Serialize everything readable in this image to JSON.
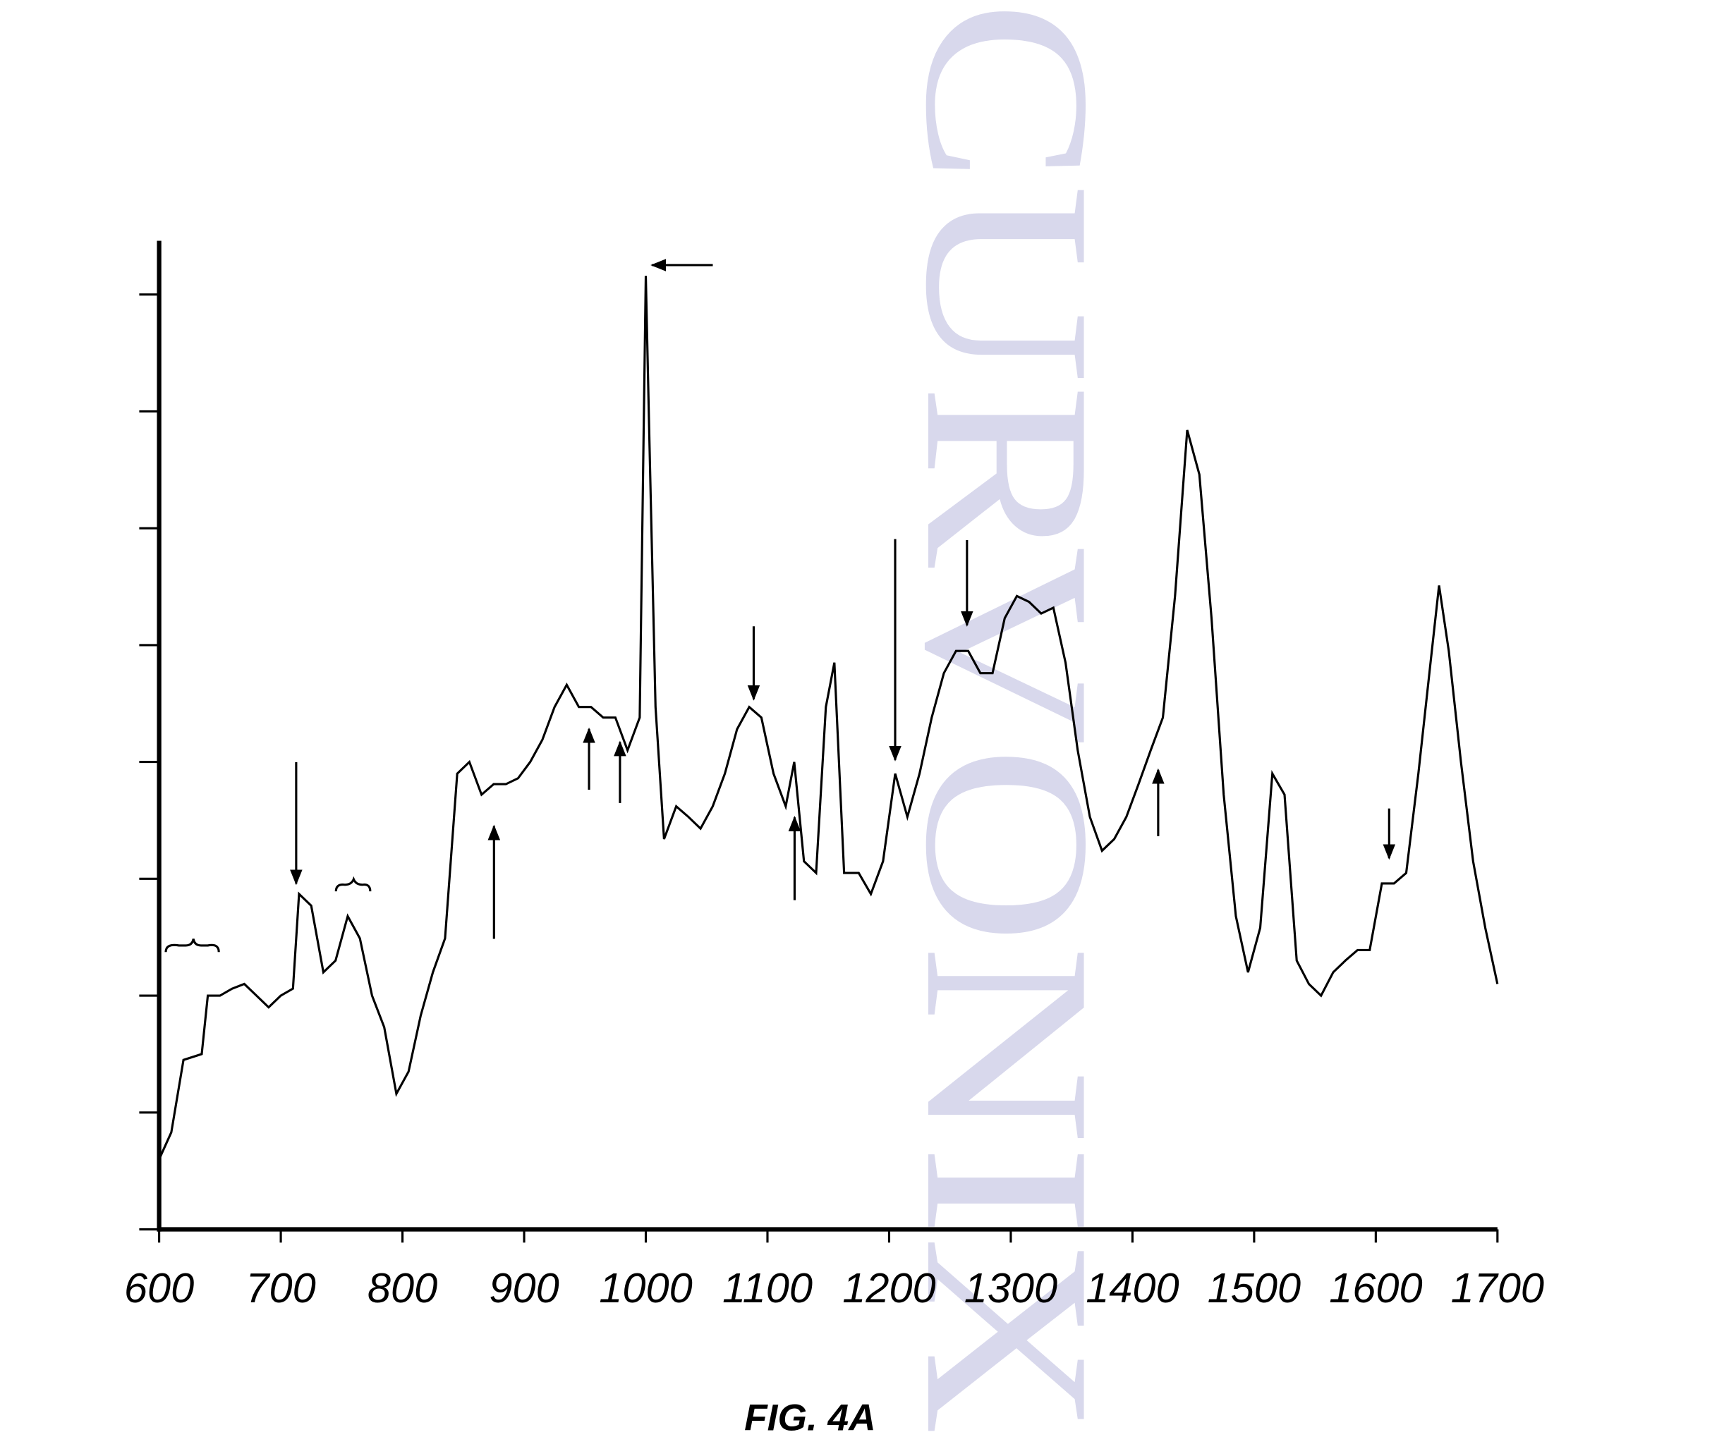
{
  "chart_data": {
    "type": "line",
    "caption": "FIG. 4A",
    "watermark": "CURVONIX",
    "x": [
      600,
      610,
      620,
      635,
      640,
      650,
      660,
      670,
      680,
      690,
      700,
      710,
      715,
      725,
      735,
      745,
      755,
      765,
      775,
      785,
      795,
      805,
      815,
      825,
      835,
      845,
      855,
      865,
      875,
      885,
      895,
      905,
      915,
      925,
      935,
      945,
      955,
      965,
      975,
      985,
      995,
      1000,
      1003,
      1008,
      1015,
      1025,
      1035,
      1045,
      1055,
      1065,
      1075,
      1085,
      1095,
      1105,
      1115,
      1122,
      1130,
      1140,
      1148,
      1155,
      1163,
      1175,
      1185,
      1195,
      1205,
      1215,
      1225,
      1235,
      1245,
      1255,
      1265,
      1275,
      1285,
      1295,
      1305,
      1315,
      1325,
      1335,
      1345,
      1355,
      1365,
      1375,
      1385,
      1395,
      1405,
      1415,
      1425,
      1435,
      1445,
      1455,
      1465,
      1475,
      1485,
      1495,
      1505,
      1515,
      1525,
      1535,
      1545,
      1555,
      1565,
      1575,
      1585,
      1595,
      1605,
      1615,
      1625,
      1635,
      1645,
      1652,
      1660,
      1670,
      1680,
      1690,
      1700
    ],
    "series": [
      {
        "color": "#000000",
        "values": [
          0.6,
          0.83,
          1.45,
          1.5,
          2.0,
          2.0,
          2.06,
          2.1,
          2.0,
          1.9,
          2.0,
          2.06,
          2.87,
          2.77,
          2.2,
          2.3,
          2.68,
          2.49,
          2.0,
          1.73,
          1.16,
          1.35,
          1.83,
          2.2,
          2.49,
          3.9,
          4.0,
          3.72,
          3.81,
          3.81,
          3.86,
          4.0,
          4.19,
          4.47,
          4.66,
          4.47,
          4.47,
          4.38,
          4.38,
          4.1,
          4.38,
          8.16,
          6.74,
          4.47,
          3.34,
          3.62,
          3.53,
          3.43,
          3.62,
          3.9,
          4.28,
          4.47,
          4.38,
          3.9,
          3.62,
          4.0,
          3.15,
          3.05,
          4.47,
          4.85,
          3.05,
          3.05,
          2.87,
          3.15,
          3.9,
          3.53,
          3.9,
          4.38,
          4.76,
          4.95,
          4.95,
          4.76,
          4.76,
          5.23,
          5.42,
          5.37,
          5.27,
          5.32,
          4.85,
          4.1,
          3.53,
          3.24,
          3.34,
          3.53,
          3.81,
          4.1,
          4.38,
          5.42,
          6.84,
          6.46,
          5.23,
          3.72,
          2.68,
          2.2,
          2.58,
          3.9,
          3.72,
          2.3,
          2.1,
          2.0,
          2.2,
          2.3,
          2.39,
          2.39,
          2.96,
          2.96,
          3.05,
          3.9,
          4.85,
          5.51,
          4.95,
          4.0,
          3.15,
          2.58,
          2.1
        ]
      }
    ],
    "xlim": [
      600,
      1700
    ],
    "xticks": [
      600,
      700,
      800,
      900,
      1000,
      1100,
      1200,
      1300,
      1400,
      1500,
      1600,
      1700
    ],
    "ylim": [
      0,
      8.46
    ],
    "yticks": [
      0,
      1,
      2,
      3,
      4,
      5,
      6,
      7,
      8
    ]
  }
}
